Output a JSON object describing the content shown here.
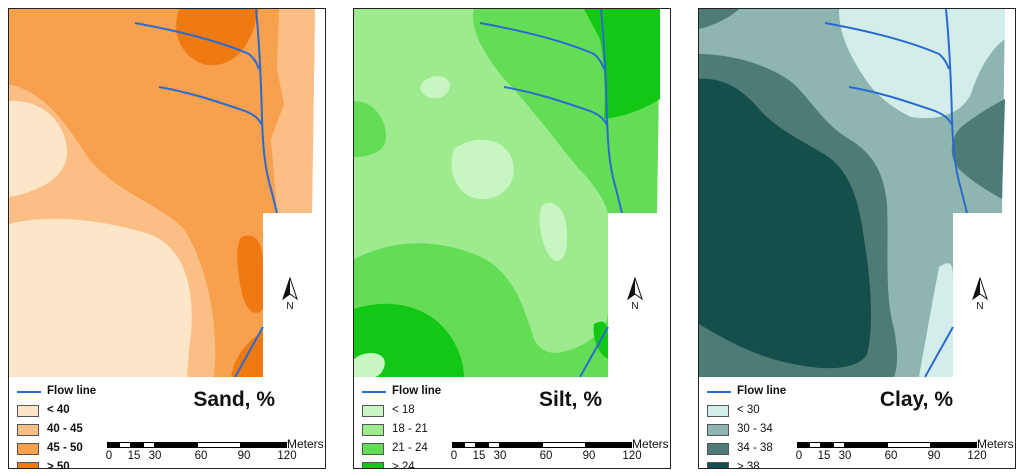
{
  "legend_flow_label": "Flow line",
  "north_label": "N",
  "scale": {
    "unit": "Meters",
    "ticks": [
      "0",
      "15",
      "30",
      "60",
      "90",
      "120"
    ]
  },
  "colors": {
    "flow_line": "#2a6bd1"
  },
  "panels": [
    {
      "title": "Sand, %",
      "classes": [
        {
          "label": "< 40",
          "color": "#fde5c8"
        },
        {
          "label": "40 - 45",
          "color": "#fbbf85"
        },
        {
          "label": "45 - 50",
          "color": "#f7a04e"
        },
        {
          "label": "> 50",
          "color": "#ef7a12"
        }
      ]
    },
    {
      "title": "Silt, %",
      "classes": [
        {
          "label": "< 18",
          "color": "#c8f6c3"
        },
        {
          "label": "18 - 21",
          "color": "#9deb8e"
        },
        {
          "label": "21 - 24",
          "color": "#62dd55"
        },
        {
          "label": "> 24",
          "color": "#12c815"
        }
      ]
    },
    {
      "title": "Clay, %",
      "classes": [
        {
          "label": "< 30",
          "color": "#d3eeea"
        },
        {
          "label": "30 - 34",
          "color": "#8eb5b0"
        },
        {
          "label": "34 - 38",
          "color": "#4e7b75"
        },
        {
          "label": "> 38",
          "color": "#154f4b"
        }
      ]
    }
  ]
}
